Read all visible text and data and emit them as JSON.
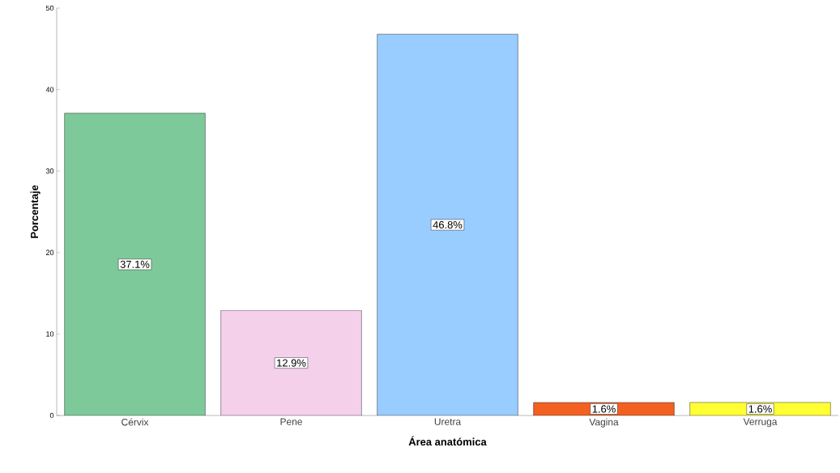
{
  "chart_data": {
    "type": "bar",
    "xlabel": "Área anatómica",
    "ylabel": "Porcentaje",
    "categories": [
      "Cérvix",
      "Pene",
      "Uretra",
      "Vagina",
      "Verruga"
    ],
    "values": [
      37.1,
      12.9,
      46.8,
      1.6,
      1.6
    ],
    "value_labels": [
      "37.1%",
      "12.9%",
      "46.8%",
      "1.6%",
      "1.6%"
    ],
    "colors": [
      "#7ec99a",
      "#f4d0ea",
      "#99ccff",
      "#f26122",
      "#ffff33"
    ],
    "ylim": [
      0,
      50
    ],
    "yticks": [
      0,
      10,
      20,
      30,
      40,
      50
    ]
  }
}
